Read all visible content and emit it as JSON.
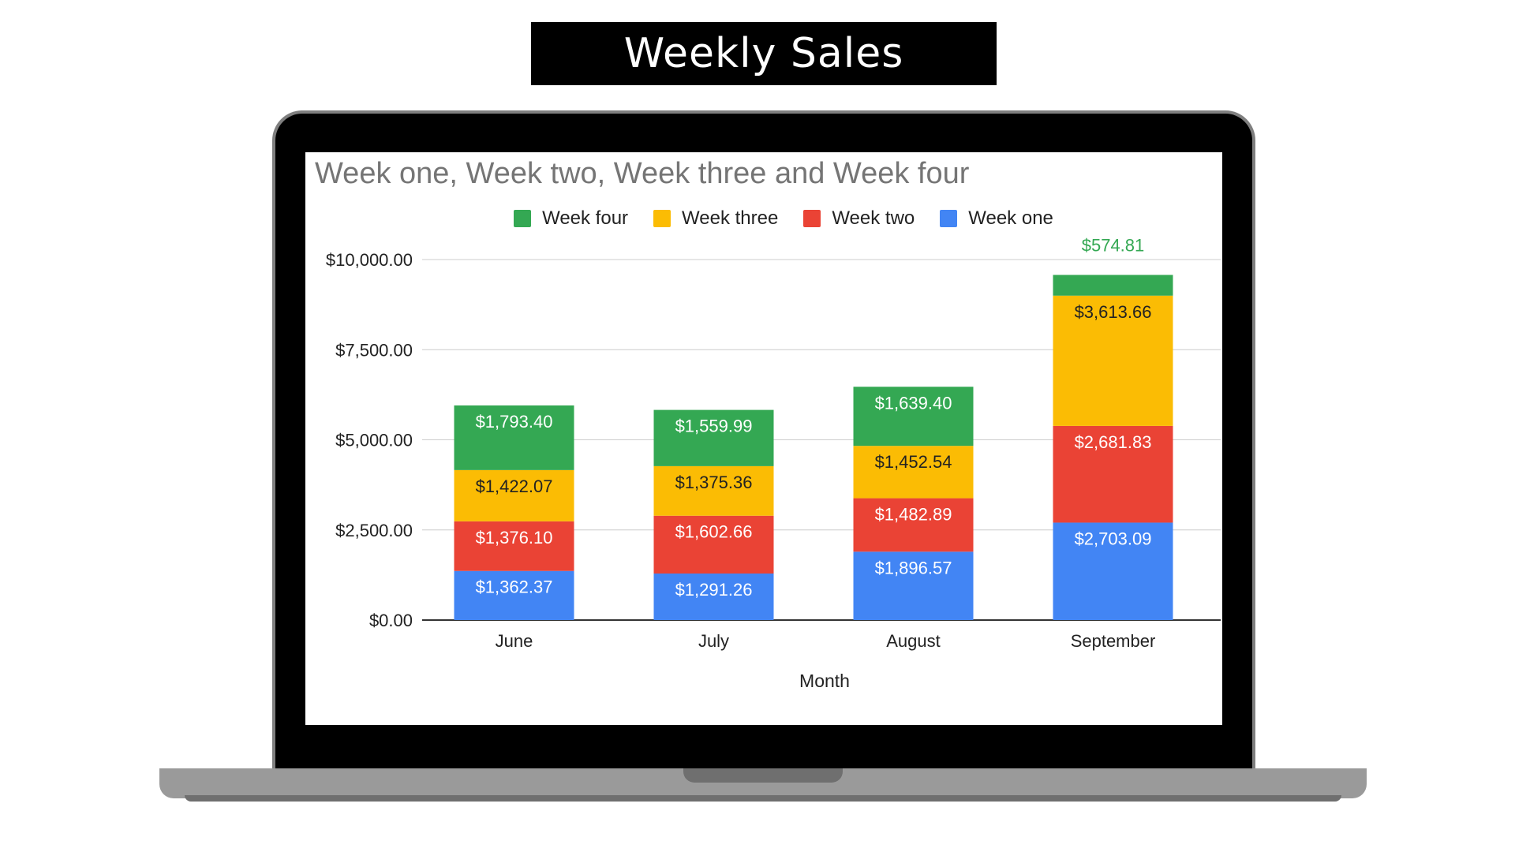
{
  "banner": {
    "title": "Weekly Sales"
  },
  "chart_data": {
    "type": "bar",
    "stacked": true,
    "title": "Week one, Week two, Week three and Week four",
    "xlabel": "Month",
    "ylabel": "",
    "categories": [
      "June",
      "July",
      "August",
      "September"
    ],
    "ylim": [
      0,
      10000
    ],
    "yticks": [
      0,
      2500,
      5000,
      7500,
      10000
    ],
    "ytick_labels": [
      "$0.00",
      "$2,500.00",
      "$5,000.00",
      "$7,500.00",
      "$10,000.00"
    ],
    "grid": true,
    "legend_position": "top",
    "legend_order": [
      "Week four",
      "Week three",
      "Week two",
      "Week one"
    ],
    "series": [
      {
        "name": "Week one",
        "color": "#4285F4",
        "label_color": "#ffffff",
        "values": [
          1362.37,
          1291.26,
          1896.57,
          2703.09
        ],
        "labels": [
          "$1,362.37",
          "$1,291.26",
          "$1,896.57",
          "$2,703.09"
        ]
      },
      {
        "name": "Week two",
        "color": "#EA4335",
        "label_color": "#ffffff",
        "values": [
          1376.1,
          1602.66,
          1482.89,
          2681.83
        ],
        "labels": [
          "$1,376.10",
          "$1,602.66",
          "$1,482.89",
          "$2,681.83"
        ]
      },
      {
        "name": "Week three",
        "color": "#FBBC04",
        "label_color": "#222222",
        "values": [
          1422.07,
          1375.36,
          1452.54,
          3613.66
        ],
        "labels": [
          "$1,422.07",
          "$1,375.36",
          "$1,452.54",
          "$3,613.66"
        ]
      },
      {
        "name": "Week four",
        "color": "#34A853",
        "label_color": "#ffffff",
        "values": [
          1793.4,
          1559.99,
          1639.4,
          574.81
        ],
        "labels": [
          "$1,793.40",
          "$1,559.99",
          "$1,639.40",
          "$574.81"
        ]
      }
    ]
  }
}
